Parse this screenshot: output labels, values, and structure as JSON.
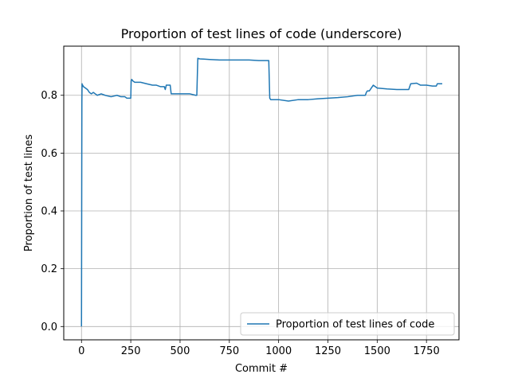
{
  "chart_data": {
    "type": "line",
    "title": "Proportion of test lines of code (underscore)",
    "xlabel": "Commit #",
    "ylabel": "Proportion of test lines",
    "xlim": [
      -90,
      1915
    ],
    "ylim": [
      -0.046,
      0.97
    ],
    "xticks": [
      0,
      250,
      500,
      750,
      1000,
      1250,
      1500,
      1750
    ],
    "yticks": [
      0.0,
      0.2,
      0.4,
      0.6,
      0.8
    ],
    "ytick_labels": [
      "0.0",
      "0.2",
      "0.4",
      "0.6",
      "0.8"
    ],
    "grid": true,
    "legend_position": "lower-right",
    "series": [
      {
        "name": "Proportion of test lines of code",
        "color": "#1f77b4",
        "x": [
          0,
          2,
          3,
          4,
          6,
          10,
          20,
          30,
          40,
          50,
          60,
          70,
          80,
          100,
          120,
          150,
          180,
          200,
          220,
          230,
          250,
          252,
          255,
          260,
          270,
          300,
          330,
          360,
          380,
          400,
          420,
          425,
          430,
          450,
          455,
          460,
          500,
          550,
          580,
          585,
          590,
          600,
          650,
          700,
          750,
          800,
          850,
          900,
          950,
          955,
          960,
          980,
          1000,
          1050,
          1100,
          1150,
          1200,
          1250,
          1300,
          1350,
          1400,
          1430,
          1440,
          1445,
          1450,
          1460,
          1470,
          1480,
          1500,
          1550,
          1600,
          1650,
          1660,
          1670,
          1700,
          1720,
          1750,
          1780,
          1800,
          1805,
          1820,
          1830
        ],
        "y": [
          0.0,
          0.78,
          0.84,
          0.83,
          0.835,
          0.83,
          0.825,
          0.82,
          0.81,
          0.805,
          0.81,
          0.805,
          0.8,
          0.805,
          0.8,
          0.795,
          0.8,
          0.795,
          0.795,
          0.79,
          0.79,
          0.85,
          0.855,
          0.85,
          0.845,
          0.845,
          0.84,
          0.835,
          0.835,
          0.83,
          0.83,
          0.82,
          0.835,
          0.835,
          0.805,
          0.805,
          0.805,
          0.805,
          0.8,
          0.8,
          0.928,
          0.926,
          0.924,
          0.922,
          0.922,
          0.922,
          0.922,
          0.92,
          0.92,
          0.79,
          0.785,
          0.785,
          0.785,
          0.78,
          0.785,
          0.785,
          0.788,
          0.79,
          0.792,
          0.795,
          0.8,
          0.8,
          0.8,
          0.81,
          0.815,
          0.815,
          0.825,
          0.835,
          0.825,
          0.822,
          0.82,
          0.82,
          0.82,
          0.84,
          0.842,
          0.835,
          0.835,
          0.832,
          0.832,
          0.84,
          0.84,
          0.84
        ]
      }
    ]
  }
}
